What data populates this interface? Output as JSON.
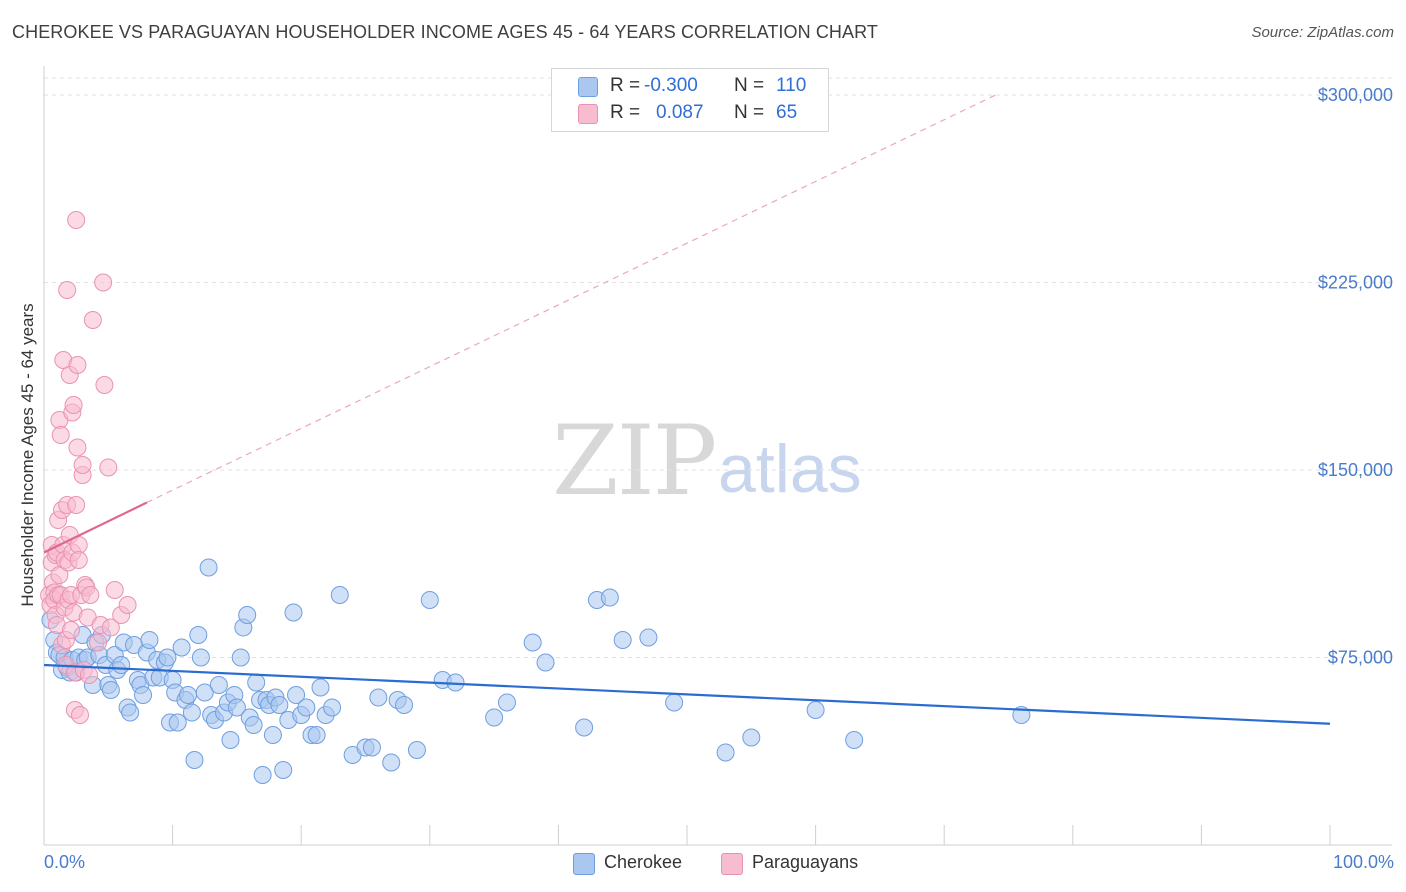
{
  "title": "CHEROKEE VS PARAGUAYAN HOUSEHOLDER INCOME AGES 45 - 64 YEARS CORRELATION CHART",
  "source": "Source: ZipAtlas.com",
  "watermark": {
    "zip": "ZIP",
    "atlas": "atlas"
  },
  "legend_top": [
    {
      "r_label": "R =",
      "r_value": "-0.300",
      "n_label": "N =",
      "n_value": "110",
      "color": "#aac7f0",
      "border": "#6f9fe0"
    },
    {
      "r_label": "R =",
      "r_value": "0.087",
      "n_label": "N =",
      "n_value": "65",
      "color": "#f7bcd0",
      "border": "#e993b2"
    }
  ],
  "legend_bottom": [
    {
      "label": "Cherokee",
      "color": "#aac7f0",
      "border": "#6f9fe0"
    },
    {
      "label": "Paraguayans",
      "color": "#f7bcd0",
      "border": "#e993b2"
    }
  ],
  "chart_data": {
    "type": "scatter",
    "title": "CHEROKEE VS PARAGUAYAN HOUSEHOLDER INCOME AGES 45 - 64 YEARS CORRELATION CHART",
    "xlabel": "",
    "ylabel": "Householder Income Ages 45 - 64 years",
    "x_tick_labels": [
      "0.0%",
      "100.0%"
    ],
    "y_tick_labels": [
      "$75,000",
      "$150,000",
      "$225,000",
      "$300,000"
    ],
    "y_ticks": [
      75000,
      150000,
      225000,
      300000
    ],
    "xlim": [
      0,
      1
    ],
    "ylim": [
      0,
      310000
    ],
    "grid": true,
    "legend_position": "top-center",
    "series": [
      {
        "name": "Cherokee",
        "color": "#6f9fe0",
        "fill": "#aac7f0",
        "trend": {
          "x": [
            0.0,
            1.0
          ],
          "y": [
            72000,
            48500
          ],
          "color": "#2a6cd0"
        },
        "points": [
          [
            0.005,
            90000
          ],
          [
            0.008,
            82000
          ],
          [
            0.01,
            77000
          ],
          [
            0.012,
            76000
          ],
          [
            0.014,
            70000
          ],
          [
            0.016,
            75000
          ],
          [
            0.018,
            71000
          ],
          [
            0.02,
            69000
          ],
          [
            0.022,
            74000
          ],
          [
            0.025,
            69000
          ],
          [
            0.027,
            75000
          ],
          [
            0.03,
            84000
          ],
          [
            0.032,
            74000
          ],
          [
            0.034,
            75000
          ],
          [
            0.038,
            64000
          ],
          [
            0.04,
            81000
          ],
          [
            0.043,
            76000
          ],
          [
            0.045,
            84000
          ],
          [
            0.048,
            72000
          ],
          [
            0.05,
            64000
          ],
          [
            0.052,
            62000
          ],
          [
            0.055,
            76000
          ],
          [
            0.057,
            70000
          ],
          [
            0.06,
            72000
          ],
          [
            0.062,
            81000
          ],
          [
            0.065,
            55000
          ],
          [
            0.067,
            53000
          ],
          [
            0.07,
            80000
          ],
          [
            0.073,
            66000
          ],
          [
            0.075,
            64000
          ],
          [
            0.077,
            60000
          ],
          [
            0.08,
            77000
          ],
          [
            0.082,
            82000
          ],
          [
            0.085,
            67000
          ],
          [
            0.088,
            74000
          ],
          [
            0.09,
            67000
          ],
          [
            0.094,
            73000
          ],
          [
            0.096,
            75000
          ],
          [
            0.098,
            49000
          ],
          [
            0.1,
            66000
          ],
          [
            0.102,
            61000
          ],
          [
            0.104,
            49000
          ],
          [
            0.107,
            79000
          ],
          [
            0.11,
            58000
          ],
          [
            0.112,
            60000
          ],
          [
            0.115,
            53000
          ],
          [
            0.117,
            34000
          ],
          [
            0.12,
            84000
          ],
          [
            0.122,
            75000
          ],
          [
            0.125,
            61000
          ],
          [
            0.128,
            111000
          ],
          [
            0.13,
            52000
          ],
          [
            0.133,
            50000
          ],
          [
            0.136,
            64000
          ],
          [
            0.14,
            53000
          ],
          [
            0.143,
            57000
          ],
          [
            0.145,
            42000
          ],
          [
            0.148,
            60000
          ],
          [
            0.15,
            55000
          ],
          [
            0.153,
            75000
          ],
          [
            0.155,
            87000
          ],
          [
            0.158,
            92000
          ],
          [
            0.16,
            51000
          ],
          [
            0.163,
            48000
          ],
          [
            0.165,
            65000
          ],
          [
            0.168,
            58000
          ],
          [
            0.17,
            28000
          ],
          [
            0.173,
            58000
          ],
          [
            0.175,
            56000
          ],
          [
            0.178,
            44000
          ],
          [
            0.18,
            59000
          ],
          [
            0.183,
            56000
          ],
          [
            0.186,
            30000
          ],
          [
            0.19,
            50000
          ],
          [
            0.194,
            93000
          ],
          [
            0.196,
            60000
          ],
          [
            0.2,
            52000
          ],
          [
            0.204,
            55000
          ],
          [
            0.208,
            44000
          ],
          [
            0.212,
            44000
          ],
          [
            0.215,
            63000
          ],
          [
            0.219,
            52000
          ],
          [
            0.224,
            55000
          ],
          [
            0.23,
            100000
          ],
          [
            0.24,
            36000
          ],
          [
            0.25,
            39000
          ],
          [
            0.255,
            39000
          ],
          [
            0.26,
            59000
          ],
          [
            0.27,
            33000
          ],
          [
            0.275,
            58000
          ],
          [
            0.28,
            56000
          ],
          [
            0.29,
            38000
          ],
          [
            0.3,
            98000
          ],
          [
            0.31,
            66000
          ],
          [
            0.32,
            65000
          ],
          [
            0.35,
            51000
          ],
          [
            0.36,
            57000
          ],
          [
            0.38,
            81000
          ],
          [
            0.39,
            73000
          ],
          [
            0.42,
            47000
          ],
          [
            0.43,
            98000
          ],
          [
            0.44,
            99000
          ],
          [
            0.45,
            82000
          ],
          [
            0.47,
            83000
          ],
          [
            0.49,
            57000
          ],
          [
            0.53,
            37000
          ],
          [
            0.55,
            43000
          ],
          [
            0.6,
            54000
          ],
          [
            0.63,
            42000
          ],
          [
            0.76,
            52000
          ]
        ]
      },
      {
        "name": "Paraguayans",
        "color": "#e993b2",
        "fill": "#f7bcd0",
        "trend": {
          "x": [
            0.0,
            0.08
          ],
          "y": [
            117000,
            137000
          ],
          "color": "#e06690",
          "extension": {
            "x": [
              0.08,
              0.74
            ],
            "y": [
              137000,
              300000
            ]
          }
        },
        "points": [
          [
            0.004,
            100000
          ],
          [
            0.005,
            96000
          ],
          [
            0.006,
            120000
          ],
          [
            0.006,
            113000
          ],
          [
            0.007,
            105000
          ],
          [
            0.008,
            101000
          ],
          [
            0.008,
            98000
          ],
          [
            0.009,
            116000
          ],
          [
            0.009,
            92000
          ],
          [
            0.01,
            117000
          ],
          [
            0.01,
            88000
          ],
          [
            0.011,
            130000
          ],
          [
            0.011,
            100000
          ],
          [
            0.012,
            170000
          ],
          [
            0.012,
            108000
          ],
          [
            0.013,
            164000
          ],
          [
            0.013,
            100000
          ],
          [
            0.014,
            134000
          ],
          [
            0.014,
            80000
          ],
          [
            0.015,
            194000
          ],
          [
            0.015,
            120000
          ],
          [
            0.016,
            114000
          ],
          [
            0.016,
            95000
          ],
          [
            0.017,
            82000
          ],
          [
            0.017,
            72000
          ],
          [
            0.018,
            222000
          ],
          [
            0.018,
            136000
          ],
          [
            0.019,
            113000
          ],
          [
            0.019,
            98000
          ],
          [
            0.02,
            188000
          ],
          [
            0.02,
            124000
          ],
          [
            0.021,
            100000
          ],
          [
            0.021,
            86000
          ],
          [
            0.022,
            173000
          ],
          [
            0.022,
            117000
          ],
          [
            0.023,
            176000
          ],
          [
            0.023,
            93000
          ],
          [
            0.024,
            69000
          ],
          [
            0.024,
            54000
          ],
          [
            0.025,
            250000
          ],
          [
            0.025,
            136000
          ],
          [
            0.026,
            192000
          ],
          [
            0.026,
            159000
          ],
          [
            0.027,
            120000
          ],
          [
            0.027,
            114000
          ],
          [
            0.028,
            52000
          ],
          [
            0.029,
            100000
          ],
          [
            0.03,
            148000
          ],
          [
            0.03,
            152000
          ],
          [
            0.031,
            70000
          ],
          [
            0.032,
            104000
          ],
          [
            0.033,
            103000
          ],
          [
            0.034,
            91000
          ],
          [
            0.035,
            68000
          ],
          [
            0.036,
            100000
          ],
          [
            0.038,
            210000
          ],
          [
            0.042,
            81000
          ],
          [
            0.044,
            88000
          ],
          [
            0.046,
            225000
          ],
          [
            0.047,
            184000
          ],
          [
            0.05,
            151000
          ],
          [
            0.052,
            87000
          ],
          [
            0.055,
            102000
          ],
          [
            0.06,
            92000
          ],
          [
            0.065,
            96000
          ]
        ]
      }
    ]
  }
}
